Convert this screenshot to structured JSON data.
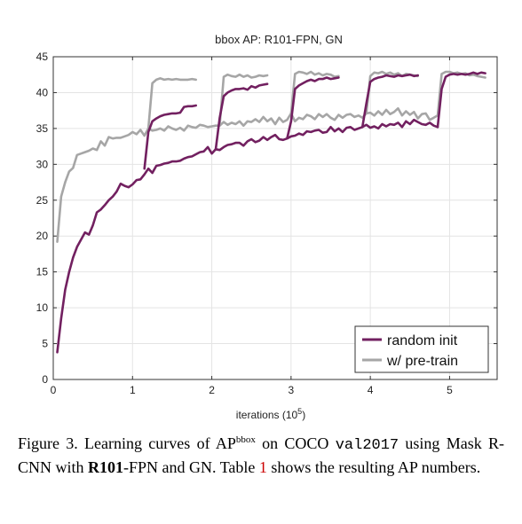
{
  "chart_data": {
    "type": "line",
    "title": "bbox AP: R101-FPN, GN",
    "xlabel_text": "iterations (10",
    "xlabel_exp": "5",
    "xlabel_close": ")",
    "xlim": [
      0,
      5.6
    ],
    "ylim": [
      0,
      45
    ],
    "xticks": [
      0,
      1,
      2,
      3,
      4,
      5
    ],
    "yticks": [
      0,
      5,
      10,
      15,
      20,
      25,
      30,
      35,
      40,
      45
    ],
    "grid": true,
    "legend_position": "bottom-right",
    "series": [
      {
        "name": "random init",
        "color": "#722060",
        "segments": [
          {
            "x": [
              0.05,
              0.1,
              0.15,
              0.2,
              0.25,
              0.3,
              0.35,
              0.4,
              0.45,
              0.5,
              0.55,
              0.6,
              0.65,
              0.7,
              0.75,
              0.8,
              0.85,
              0.9,
              0.95,
              1.0,
              1.05,
              1.1,
              1.15,
              1.2,
              1.25,
              1.3,
              1.35,
              1.4,
              1.45,
              1.5,
              1.55,
              1.6,
              1.65,
              1.7,
              1.75,
              1.8,
              1.85,
              1.9,
              1.95,
              2.0,
              2.05,
              2.1,
              2.15,
              2.2,
              2.25,
              2.3,
              2.35,
              2.4,
              2.45,
              2.5,
              2.55,
              2.6,
              2.65,
              2.7,
              2.75,
              2.8,
              2.85,
              2.9,
              2.95,
              3.0,
              3.05,
              3.1,
              3.15,
              3.2,
              3.25,
              3.3,
              3.35,
              3.4,
              3.45,
              3.5,
              3.55,
              3.6,
              3.65,
              3.7,
              3.75,
              3.8,
              3.85,
              3.9,
              3.95,
              4.0,
              4.05,
              4.1,
              4.15,
              4.2,
              4.25,
              4.3,
              4.35,
              4.4,
              4.45,
              4.5,
              4.55,
              4.6,
              4.65,
              4.7,
              4.75,
              4.8,
              4.85
            ],
            "y": [
              3.8,
              8.5,
              12.5,
              15.0,
              17.0,
              18.5,
              19.5,
              20.5,
              20.2,
              21.5,
              23.3,
              23.7,
              24.3,
              25.0,
              25.5,
              26.2,
              27.3,
              27.0,
              26.8,
              27.2,
              27.8,
              27.9,
              28.6,
              29.4,
              28.8,
              29.8,
              29.9,
              30.1,
              30.2,
              30.4,
              30.4,
              30.5,
              30.8,
              31.0,
              31.1,
              31.4,
              31.7,
              31.8,
              32.4,
              31.5,
              32.1,
              32.0,
              32.4,
              32.7,
              32.8,
              33.0,
              33.0,
              32.6,
              33.2,
              33.5,
              33.1,
              33.3,
              33.8,
              33.4,
              33.8,
              34.1,
              33.5,
              33.4,
              33.6,
              33.9,
              34.0,
              34.3,
              34.1,
              34.6,
              34.5,
              34.7,
              34.8,
              34.4,
              34.5,
              35.2,
              34.6,
              35.0,
              34.5,
              35.1,
              35.2,
              34.8,
              35.0,
              35.2,
              35.5,
              35.1,
              35.3,
              35.0,
              35.6,
              35.3,
              35.6,
              35.5,
              35.8,
              35.2,
              36.0,
              35.6,
              36.2,
              35.9,
              35.6,
              35.5,
              35.8,
              35.4,
              35.2
            ]
          },
          {
            "x": [
              1.15,
              1.2,
              1.25,
              1.3,
              1.35,
              1.4,
              1.45,
              1.5,
              1.55,
              1.6,
              1.65,
              1.7,
              1.75,
              1.8
            ],
            "y": [
              29.4,
              34.5,
              36.0,
              36.4,
              36.7,
              36.9,
              37.0,
              37.1,
              37.1,
              37.2,
              38.0,
              38.1,
              38.1,
              38.2
            ]
          },
          {
            "x": [
              2.05,
              2.1,
              2.15,
              2.2,
              2.25,
              2.3,
              2.35,
              2.4,
              2.45,
              2.5,
              2.55,
              2.6,
              2.65,
              2.7
            ],
            "y": [
              32.1,
              36.5,
              39.5,
              40.0,
              40.3,
              40.5,
              40.5,
              40.6,
              40.4,
              40.9,
              40.7,
              41.0,
              41.1,
              41.2
            ]
          },
          {
            "x": [
              2.95,
              3.0,
              3.05,
              3.1,
              3.15,
              3.2,
              3.25,
              3.3,
              3.35,
              3.4,
              3.45,
              3.5,
              3.55,
              3.6
            ],
            "y": [
              33.6,
              36.0,
              40.5,
              41.0,
              41.3,
              41.6,
              41.8,
              41.6,
              41.9,
              41.9,
              42.1,
              41.9,
              42.0,
              42.1
            ]
          },
          {
            "x": [
              3.9,
              3.95,
              4.0,
              4.05,
              4.1,
              4.15,
              4.2,
              4.25,
              4.3,
              4.35,
              4.4,
              4.45,
              4.5,
              4.55,
              4.6
            ],
            "y": [
              35.2,
              38.5,
              41.5,
              41.9,
              42.1,
              42.2,
              42.4,
              42.3,
              42.2,
              42.4,
              42.3,
              42.4,
              42.5,
              42.3,
              42.4
            ]
          },
          {
            "x": [
              4.85,
              4.9,
              4.95,
              5.0,
              5.05,
              5.1,
              5.15,
              5.2,
              5.25,
              5.3,
              5.35,
              5.4,
              5.45
            ],
            "y": [
              35.2,
              40.5,
              42.2,
              42.5,
              42.6,
              42.5,
              42.6,
              42.5,
              42.6,
              42.8,
              42.6,
              42.8,
              42.7
            ]
          }
        ]
      },
      {
        "name": "w/ pre-train",
        "color": "#a6a6a6",
        "segments": [
          {
            "x": [
              0.05,
              0.1,
              0.15,
              0.2,
              0.25,
              0.3,
              0.35,
              0.4,
              0.45,
              0.5,
              0.55,
              0.6,
              0.65,
              0.7,
              0.75,
              0.8,
              0.85,
              0.9,
              0.95,
              1.0,
              1.05,
              1.1,
              1.15,
              1.2,
              1.25,
              1.3,
              1.35,
              1.4,
              1.45,
              1.5,
              1.55,
              1.6,
              1.65,
              1.7,
              1.75,
              1.8,
              1.85,
              1.9,
              1.95,
              2.0,
              2.05,
              2.1,
              2.15,
              2.2,
              2.25,
              2.3,
              2.35,
              2.4,
              2.45,
              2.5,
              2.55,
              2.6,
              2.65,
              2.7,
              2.75,
              2.8,
              2.85,
              2.9,
              2.95,
              3.0,
              3.05,
              3.1,
              3.15,
              3.2,
              3.25,
              3.3,
              3.35,
              3.4,
              3.45,
              3.5,
              3.55,
              3.6,
              3.65,
              3.7,
              3.75,
              3.8,
              3.85,
              3.9,
              3.95,
              4.0,
              4.05,
              4.1,
              4.15,
              4.2,
              4.25,
              4.3,
              4.35,
              4.4,
              4.45,
              4.5,
              4.55,
              4.6,
              4.65,
              4.7,
              4.75,
              4.8,
              4.85
            ],
            "y": [
              19.2,
              25.5,
              27.5,
              29.0,
              29.5,
              31.3,
              31.5,
              31.7,
              31.9,
              32.2,
              32.0,
              33.2,
              32.6,
              33.8,
              33.6,
              33.7,
              33.7,
              33.9,
              34.1,
              34.5,
              34.2,
              34.8,
              34.0,
              35.0,
              34.7,
              34.8,
              35.0,
              34.7,
              35.3,
              35.0,
              34.8,
              35.1,
              34.7,
              35.4,
              35.2,
              35.1,
              35.5,
              35.4,
              35.2,
              35.3,
              35.4,
              35.4,
              35.9,
              35.5,
              35.8,
              35.6,
              36.0,
              35.4,
              36.0,
              35.9,
              36.3,
              35.9,
              36.6,
              36.0,
              36.4,
              35.6,
              36.5,
              35.9,
              36.2,
              37.1,
              36.0,
              36.5,
              36.3,
              36.9,
              36.7,
              36.3,
              37.0,
              36.6,
              37.0,
              36.5,
              36.2,
              36.9,
              36.5,
              36.9,
              37.0,
              36.6,
              36.8,
              36.5,
              37.1,
              37.2,
              36.8,
              37.4,
              36.9,
              37.6,
              37.0,
              37.3,
              37.8,
              36.8,
              37.4,
              36.9,
              37.3,
              36.4,
              37.0,
              37.1,
              36.2,
              36.5,
              36.8
            ]
          },
          {
            "x": [
              1.2,
              1.25,
              1.3,
              1.35,
              1.4,
              1.45,
              1.5,
              1.55,
              1.6,
              1.65,
              1.7,
              1.75,
              1.8
            ],
            "y": [
              35.0,
              41.3,
              41.8,
              42.0,
              41.8,
              41.9,
              41.8,
              41.9,
              41.8,
              41.8,
              41.8,
              41.9,
              41.8
            ]
          },
          {
            "x": [
              2.1,
              2.15,
              2.2,
              2.25,
              2.3,
              2.35,
              2.4,
              2.45,
              2.5,
              2.55,
              2.6,
              2.65,
              2.7
            ],
            "y": [
              35.5,
              42.2,
              42.5,
              42.3,
              42.2,
              42.5,
              42.2,
              42.4,
              42.1,
              42.2,
              42.4,
              42.3,
              42.4
            ]
          },
          {
            "x": [
              3.0,
              3.05,
              3.1,
              3.15,
              3.2,
              3.25,
              3.3,
              3.35,
              3.4,
              3.45,
              3.5,
              3.55,
              3.6
            ],
            "y": [
              37.1,
              42.6,
              42.9,
              42.8,
              42.6,
              42.9,
              42.5,
              42.7,
              42.4,
              42.6,
              42.5,
              42.2,
              42.3
            ]
          },
          {
            "x": [
              3.95,
              4.0,
              4.05,
              4.1,
              4.15,
              4.2,
              4.25,
              4.3,
              4.35,
              4.4,
              4.45,
              4.5,
              4.55,
              4.6
            ],
            "y": [
              37.1,
              42.3,
              42.8,
              42.7,
              42.9,
              42.6,
              42.8,
              42.5,
              42.7,
              42.3,
              42.6,
              42.5,
              42.4,
              42.3
            ]
          },
          {
            "x": [
              4.85,
              4.9,
              4.95,
              5.0,
              5.05,
              5.1,
              5.15,
              5.2,
              5.25,
              5.3,
              5.35,
              5.4,
              5.45
            ],
            "y": [
              36.8,
              42.6,
              42.9,
              42.9,
              42.7,
              42.8,
              42.6,
              42.7,
              42.4,
              42.5,
              42.3,
              42.2,
              42.1
            ]
          }
        ]
      }
    ]
  },
  "caption": {
    "lead": "Figure 3. Learning curves of AP",
    "sup": "bbox",
    "mid1": " on COCO ",
    "code": "val2017",
    "mid2": " using Mask R-CNN with ",
    "bold": "R101",
    "mid3": "-FPN and GN. Table ",
    "ref": "1",
    "tail": " shows the resulting AP numbers."
  }
}
